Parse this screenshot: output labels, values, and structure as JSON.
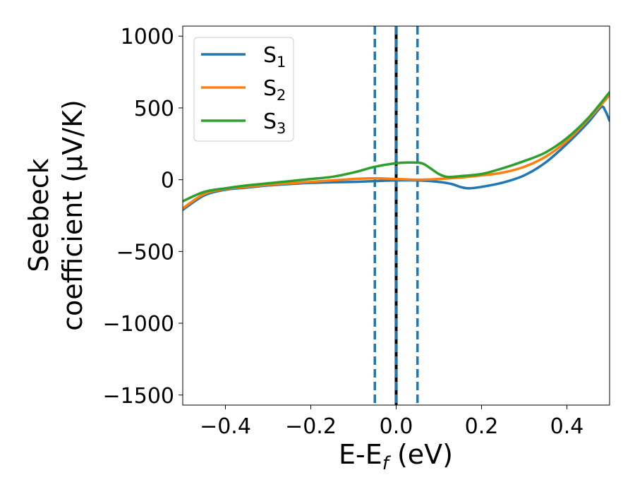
{
  "chart_data": {
    "type": "line",
    "title": "",
    "xlabel": "E-E",
    "xlabel_sub": "f",
    "xlabel_unit": " (eV)",
    "ylabel_line1": "Seebeck",
    "ylabel_line2": "coefficient  (μV/K)",
    "xlim": [
      -0.5,
      0.5
    ],
    "ylim": [
      -1570,
      1070
    ],
    "xticks": [
      -0.4,
      -0.2,
      0.0,
      0.2,
      0.4
    ],
    "xtick_labels": [
      "−0.4",
      "−0.2",
      "0.0",
      "0.2",
      "0.4"
    ],
    "yticks": [
      -1500,
      -1000,
      -500,
      0,
      500,
      1000
    ],
    "ytick_labels": [
      "−1500",
      "−1000",
      "−500",
      "0",
      "500",
      "1000"
    ],
    "legend_position": "top-left",
    "vlines": [
      {
        "x": -0.05,
        "style": "dashed",
        "color": "#1f77b4"
      },
      {
        "x": 0.0,
        "style": "solid",
        "color": "#000000"
      },
      {
        "x": 0.0,
        "style": "dashed",
        "color": "#1f77b4"
      },
      {
        "x": 0.05,
        "style": "dashed",
        "color": "#1f77b4"
      }
    ],
    "series": [
      {
        "name": "S",
        "sub": "1",
        "color": "#1f77b4",
        "x": [
          -0.5,
          -0.45,
          -0.4,
          -0.35,
          -0.3,
          -0.25,
          -0.2,
          -0.15,
          -0.1,
          -0.05,
          0.0,
          0.05,
          0.1,
          0.13,
          0.15,
          0.17,
          0.2,
          0.25,
          0.3,
          0.35,
          0.4,
          0.45,
          0.48,
          0.49,
          0.5
        ],
        "y": [
          -210,
          -110,
          -70,
          -55,
          -40,
          -30,
          -22,
          -18,
          -15,
          -10,
          -5,
          -5,
          -15,
          -30,
          -50,
          -60,
          -50,
          -20,
          30,
          120,
          250,
          400,
          505,
          480,
          410
        ]
      },
      {
        "name": "S",
        "sub": "2",
        "color": "#ff7f0e",
        "x": [
          -0.5,
          -0.45,
          -0.4,
          -0.35,
          -0.3,
          -0.25,
          -0.2,
          -0.15,
          -0.1,
          -0.05,
          0.0,
          0.05,
          0.1,
          0.15,
          0.2,
          0.25,
          0.3,
          0.35,
          0.4,
          0.45,
          0.5
        ],
        "y": [
          -200,
          -100,
          -65,
          -50,
          -35,
          -25,
          -15,
          -5,
          5,
          10,
          5,
          0,
          5,
          15,
          30,
          50,
          90,
          160,
          270,
          420,
          590
        ]
      },
      {
        "name": "S",
        "sub": "3",
        "color": "#2ca02c",
        "x": [
          -0.5,
          -0.45,
          -0.4,
          -0.35,
          -0.3,
          -0.25,
          -0.2,
          -0.15,
          -0.1,
          -0.05,
          0.0,
          0.03,
          0.06,
          0.08,
          0.1,
          0.12,
          0.15,
          0.2,
          0.25,
          0.3,
          0.35,
          0.4,
          0.45,
          0.5
        ],
        "y": [
          -150,
          -85,
          -60,
          -40,
          -25,
          -10,
          5,
          20,
          50,
          90,
          115,
          120,
          115,
          80,
          40,
          20,
          25,
          40,
          80,
          130,
          190,
          290,
          430,
          610
        ]
      }
    ]
  }
}
